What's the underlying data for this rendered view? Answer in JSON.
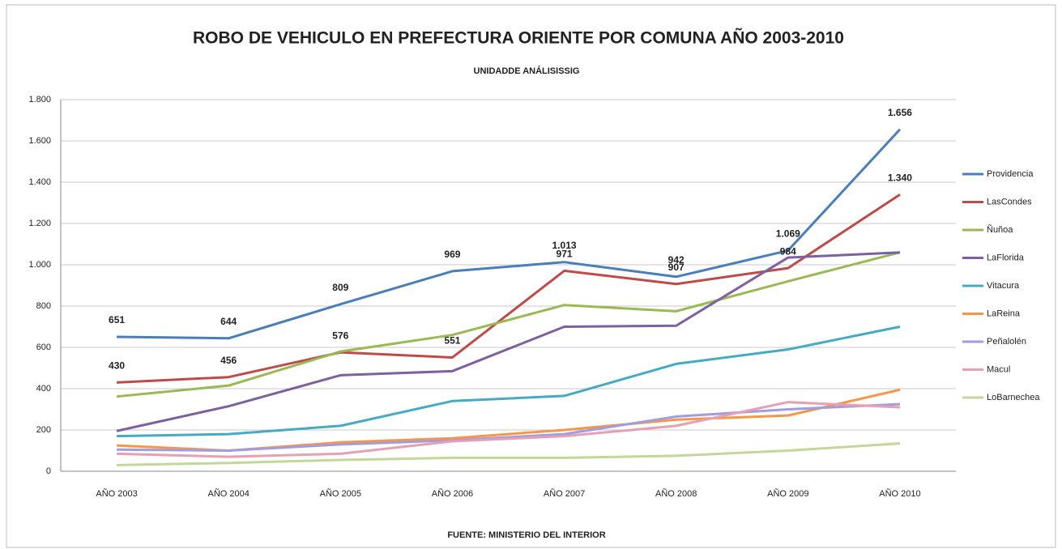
{
  "chart_data": {
    "type": "line",
    "title": "ROBO DE VEHICULO EN PREFECTURA ORIENTE POR COMUNA AÑO 2003-2010",
    "subtitle": "UNIDADDE ANÁLISISSIG",
    "source": "FUENTE: MINISTERIO DEL INTERIOR",
    "categories": [
      "AÑO 2003",
      "AÑO 2004",
      "AÑO 2005",
      "AÑO 2006",
      "AÑO 2007",
      "AÑO 2008",
      "AÑO 2009",
      "AÑO 2010"
    ],
    "ylim": [
      0,
      1800
    ],
    "yticks": [
      0,
      200,
      400,
      600,
      800,
      {
        "value": 1000,
        "label": "1.000"
      },
      {
        "value": 1200,
        "label": "1.200"
      },
      {
        "value": 1400,
        "label": "1.400"
      },
      {
        "value": 1600,
        "label": "1.600"
      },
      {
        "value": 1800,
        "label": "1.800"
      }
    ],
    "grid": true,
    "legend": "right",
    "series": [
      {
        "name": "Providencia",
        "color": "#4a7ebb",
        "values": [
          651,
          644,
          809,
          969,
          1013,
          942,
          1069,
          1656
        ],
        "value_labels": [
          "651",
          "644",
          "809",
          "969",
          "1.013",
          "942",
          "1.069",
          "1.656"
        ]
      },
      {
        "name": "LasCondes",
        "color": "#be4b48",
        "values": [
          430,
          456,
          576,
          551,
          971,
          907,
          984,
          1340
        ],
        "value_labels": [
          "430",
          "456",
          "576",
          "551",
          "971",
          "907",
          "984",
          "1.340"
        ]
      },
      {
        "name": "Ñuñoa",
        "color": "#98b954",
        "values": [
          362,
          415,
          580,
          660,
          805,
          775,
          920,
          1060
        ]
      },
      {
        "name": "LaFlorida",
        "color": "#7d60a0",
        "values": [
          195,
          315,
          465,
          485,
          700,
          705,
          1035,
          1060
        ]
      },
      {
        "name": "Vitacura",
        "color": "#46aac5",
        "values": [
          170,
          180,
          220,
          340,
          365,
          520,
          590,
          700
        ]
      },
      {
        "name": "LaReina",
        "color": "#f79646",
        "values": [
          125,
          100,
          140,
          160,
          200,
          250,
          270,
          395
        ]
      },
      {
        "name": "Peñalolén",
        "color": "#a09ce0",
        "values": [
          105,
          100,
          130,
          150,
          180,
          265,
          300,
          325
        ]
      },
      {
        "name": "Macul",
        "color": "#e6a0b4",
        "values": [
          85,
          70,
          85,
          145,
          170,
          220,
          335,
          310
        ]
      },
      {
        "name": "LoBarnechea",
        "color": "#c3d69b",
        "values": [
          30,
          40,
          55,
          65,
          65,
          75,
          100,
          135
        ]
      }
    ]
  }
}
